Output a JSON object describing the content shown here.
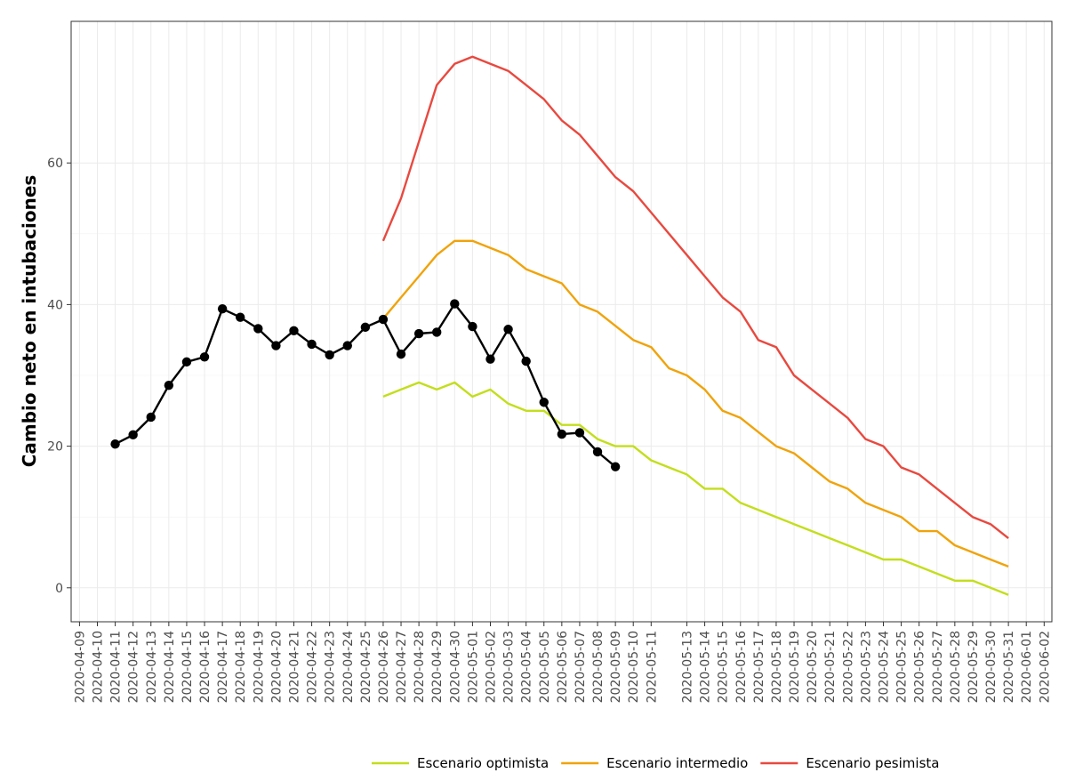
{
  "chart_data": {
    "type": "line",
    "title": "",
    "xlabel": "",
    "ylabel": "Cambio neto en intubaciones",
    "x_ticks": [
      "2020-04-09",
      "2020-04-10",
      "2020-04-11",
      "2020-04-12",
      "2020-04-13",
      "2020-04-14",
      "2020-04-15",
      "2020-04-16",
      "2020-04-17",
      "2020-04-18",
      "2020-04-19",
      "2020-04-20",
      "2020-04-21",
      "2020-04-22",
      "2020-04-23",
      "2020-04-24",
      "2020-04-25",
      "2020-04-26",
      "2020-04-27",
      "2020-04-28",
      "2020-04-29",
      "2020-04-30",
      "2020-05-01",
      "2020-05-02",
      "2020-05-03",
      "2020-05-04",
      "2020-05-05",
      "2020-05-06",
      "2020-05-07",
      "2020-05-08",
      "2020-05-09",
      "2020-05-10",
      "2020-05-11",
      "2020-05-13",
      "2020-05-14",
      "2020-05-15",
      "2020-05-16",
      "2020-05-17",
      "2020-05-18",
      "2020-05-19",
      "2020-05-20",
      "2020-05-21",
      "2020-05-22",
      "2020-05-23",
      "2020-05-24",
      "2020-05-25",
      "2020-05-26",
      "2020-05-27",
      "2020-05-28",
      "2020-05-29",
      "2020-05-30",
      "2020-05-31",
      "2020-06-01",
      "2020-06-02"
    ],
    "y_ticks": [
      0,
      20,
      40,
      60
    ],
    "ylim": [
      -4.8,
      80
    ],
    "grid": true,
    "legend_position": "bottom-right",
    "observed": {
      "name": "",
      "color": "#000000",
      "x": [
        "2020-04-11",
        "2020-04-12",
        "2020-04-13",
        "2020-04-14",
        "2020-04-15",
        "2020-04-16",
        "2020-04-17",
        "2020-04-18",
        "2020-04-19",
        "2020-04-20",
        "2020-04-21",
        "2020-04-22",
        "2020-04-23",
        "2020-04-24",
        "2020-04-25",
        "2020-04-26",
        "2020-04-27",
        "2020-04-28",
        "2020-04-29",
        "2020-04-30",
        "2020-05-01",
        "2020-05-02",
        "2020-05-03",
        "2020-05-04",
        "2020-05-05",
        "2020-05-06",
        "2020-05-07",
        "2020-05-08",
        "2020-05-09"
      ],
      "values": [
        20.3,
        21.6,
        24.1,
        28.6,
        31.9,
        32.6,
        39.4,
        38.2,
        36.6,
        34.2,
        36.3,
        34.4,
        32.9,
        34.2,
        36.8,
        37.9,
        33.0,
        35.9,
        36.1,
        40.1,
        36.9,
        32.3,
        36.5,
        32.0,
        26.2,
        21.7,
        21.9,
        19.2,
        17.1
      ]
    },
    "series": [
      {
        "name": "Escenario optimista",
        "color": "#c3de1c",
        "x": [
          "2020-04-26",
          "2020-04-27",
          "2020-04-28",
          "2020-04-29",
          "2020-04-30",
          "2020-05-01",
          "2020-05-02",
          "2020-05-03",
          "2020-05-04",
          "2020-05-05",
          "2020-05-06",
          "2020-05-07",
          "2020-05-08",
          "2020-05-09",
          "2020-05-10",
          "2020-05-11",
          "2020-05-12",
          "2020-05-13",
          "2020-05-14",
          "2020-05-15",
          "2020-05-16",
          "2020-05-17",
          "2020-05-18",
          "2020-05-19",
          "2020-05-20",
          "2020-05-21",
          "2020-05-22",
          "2020-05-23",
          "2020-05-24",
          "2020-05-25",
          "2020-05-26",
          "2020-05-27",
          "2020-05-28",
          "2020-05-29",
          "2020-05-30",
          "2020-05-31"
        ],
        "values": [
          27,
          28,
          29,
          28,
          29,
          27,
          28,
          26,
          25,
          25,
          23,
          23,
          21,
          20,
          20,
          18,
          17,
          16,
          14,
          14,
          12,
          11,
          10,
          9,
          8,
          7,
          6,
          5,
          4,
          4,
          3,
          2,
          1,
          1,
          0,
          -1
        ]
      },
      {
        "name": "Escenario intermedio",
        "color": "#f0a30a",
        "x": [
          "2020-04-26",
          "2020-04-27",
          "2020-04-28",
          "2020-04-29",
          "2020-04-30",
          "2020-05-01",
          "2020-05-02",
          "2020-05-03",
          "2020-05-04",
          "2020-05-05",
          "2020-05-06",
          "2020-05-07",
          "2020-05-08",
          "2020-05-09",
          "2020-05-10",
          "2020-05-11",
          "2020-05-12",
          "2020-05-13",
          "2020-05-14",
          "2020-05-15",
          "2020-05-16",
          "2020-05-17",
          "2020-05-18",
          "2020-05-19",
          "2020-05-20",
          "2020-05-21",
          "2020-05-22",
          "2020-05-23",
          "2020-05-24",
          "2020-05-25",
          "2020-05-26",
          "2020-05-27",
          "2020-05-28",
          "2020-05-29",
          "2020-05-30",
          "2020-05-31"
        ],
        "values": [
          38,
          41,
          44,
          47,
          49,
          49,
          48,
          47,
          45,
          44,
          43,
          40,
          39,
          37,
          35,
          34,
          31,
          30,
          28,
          25,
          24,
          22,
          20,
          19,
          17,
          15,
          14,
          12,
          11,
          10,
          8,
          8,
          6,
          5,
          4,
          3
        ]
      },
      {
        "name": "Escenario pesimista",
        "color": "#e8493f",
        "x": [
          "2020-04-26",
          "2020-04-27",
          "2020-04-28",
          "2020-04-29",
          "2020-04-30",
          "2020-05-01",
          "2020-05-02",
          "2020-05-03",
          "2020-05-04",
          "2020-05-05",
          "2020-05-06",
          "2020-05-07",
          "2020-05-08",
          "2020-05-09",
          "2020-05-10",
          "2020-05-11",
          "2020-05-12",
          "2020-05-13",
          "2020-05-14",
          "2020-05-15",
          "2020-05-16",
          "2020-05-17",
          "2020-05-18",
          "2020-05-19",
          "2020-05-20",
          "2020-05-21",
          "2020-05-22",
          "2020-05-23",
          "2020-05-24",
          "2020-05-25",
          "2020-05-26",
          "2020-05-27",
          "2020-05-28",
          "2020-05-29",
          "2020-05-30",
          "2020-05-31"
        ],
        "values": [
          49,
          55,
          63,
          71,
          74,
          75,
          74,
          73,
          71,
          69,
          66,
          64,
          61,
          58,
          56,
          53,
          50,
          47,
          44,
          41,
          39,
          35,
          34,
          30,
          28,
          26,
          24,
          21,
          20,
          17,
          16,
          14,
          12,
          10,
          9,
          7
        ]
      }
    ]
  }
}
